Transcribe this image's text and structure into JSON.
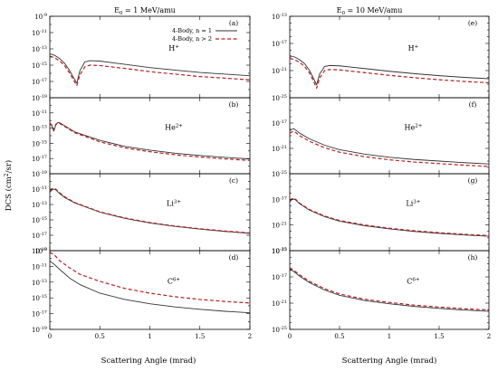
{
  "figure": {
    "col_titles": [
      "E",
      "E"
    ],
    "col_title_sub": [
      "0",
      "0"
    ],
    "col_title_rest": [
      " = 1 MeV/amu",
      " = 10 MeV/amu"
    ],
    "ylabel": "DCS (cm",
    "ylabel_sup": "2",
    "ylabel_rest": "/sr)",
    "xlabel": "Scattering Angle (mrad)",
    "legend": [
      "4-Body, n = 1",
      "4-Body, n > 2"
    ],
    "colors": {
      "n1": "#333333",
      "n2": "#b22222",
      "frame": "#000000"
    }
  },
  "chart_data": [
    {
      "type": "line",
      "panel": "(a)",
      "ion": "H",
      "ion_charge": "+",
      "energy": "1 MeV/amu",
      "log_y": true,
      "xlim": [
        0,
        2
      ],
      "ylim_exp": [
        -19,
        -9
      ],
      "x_ticks": [
        "0",
        "0.5",
        "1",
        "1.5",
        "2"
      ],
      "y_ticks": [
        "10-9",
        "10-11",
        "10-13",
        "10-15",
        "10-17",
        "10-19"
      ],
      "series": [
        {
          "name": "4-Body, n = 1",
          "x": [
            0,
            0.05,
            0.1,
            0.15,
            0.2,
            0.24,
            0.27,
            0.3,
            0.35,
            0.4,
            0.5,
            0.75,
            1.0,
            1.25,
            1.5,
            1.75,
            2.0
          ],
          "logy": [
            -13.6,
            -13.8,
            -14.2,
            -14.8,
            -15.7,
            -16.6,
            -17.2,
            -15.7,
            -14.6,
            -14.45,
            -14.5,
            -14.9,
            -15.3,
            -15.6,
            -15.9,
            -16.1,
            -16.3
          ]
        },
        {
          "name": "4-Body, n > 2",
          "x": [
            0,
            0.05,
            0.1,
            0.15,
            0.2,
            0.24,
            0.27,
            0.3,
            0.35,
            0.4,
            0.5,
            0.75,
            1.0,
            1.25,
            1.5,
            1.75,
            2.0
          ],
          "logy": [
            -13.9,
            -14.1,
            -14.5,
            -15.1,
            -16.0,
            -16.9,
            -17.5,
            -16.2,
            -15.2,
            -15.0,
            -15.05,
            -15.4,
            -15.8,
            -16.1,
            -16.4,
            -16.6,
            -16.8
          ]
        }
      ]
    },
    {
      "type": "line",
      "panel": "(b)",
      "ion": "He",
      "ion_charge": "2+",
      "energy": "1 MeV/amu",
      "log_y": true,
      "xlim": [
        0,
        2
      ],
      "ylim_exp": [
        -19,
        -9
      ],
      "x_ticks": [],
      "y_ticks": [
        "10-11",
        "10-13",
        "10-15",
        "10-17",
        "10-19"
      ],
      "series": [
        {
          "name": "4-Body, n = 1",
          "x": [
            0,
            0.02,
            0.04,
            0.06,
            0.08,
            0.1,
            0.15,
            0.25,
            0.5,
            0.75,
            1.0,
            1.25,
            1.5,
            1.75,
            2.0
          ],
          "logy": [
            -12.4,
            -12.7,
            -13.4,
            -12.6,
            -12.25,
            -12.3,
            -12.7,
            -13.5,
            -14.6,
            -15.4,
            -15.9,
            -16.3,
            -16.6,
            -16.85,
            -17.05
          ]
        },
        {
          "name": "4-Body, n > 2",
          "x": [
            0,
            0.02,
            0.04,
            0.06,
            0.08,
            0.1,
            0.15,
            0.25,
            0.5,
            0.75,
            1.0,
            1.25,
            1.5,
            1.75,
            2.0
          ],
          "logy": [
            -12.3,
            -12.6,
            -13.2,
            -12.5,
            -12.3,
            -12.4,
            -12.8,
            -13.6,
            -14.8,
            -15.6,
            -16.1,
            -16.5,
            -16.8,
            -17.05,
            -17.25
          ]
        }
      ]
    },
    {
      "type": "line",
      "panel": "(c)",
      "ion": "Li",
      "ion_charge": "3+",
      "energy": "1 MeV/amu",
      "log_y": true,
      "xlim": [
        0,
        2
      ],
      "ylim_exp": [
        -19,
        -9
      ],
      "x_ticks": [],
      "y_ticks": [
        "10-11",
        "10-13",
        "10-15",
        "10-17",
        "10-19"
      ],
      "series": [
        {
          "name": "4-Body, n = 1",
          "x": [
            0,
            0.03,
            0.06,
            0.1,
            0.15,
            0.25,
            0.5,
            0.75,
            1.0,
            1.25,
            1.5,
            1.75,
            2.0
          ],
          "logy": [
            -11.4,
            -11.0,
            -11.1,
            -11.6,
            -12.1,
            -12.8,
            -14.0,
            -14.8,
            -15.4,
            -15.85,
            -16.2,
            -16.5,
            -16.75
          ]
        },
        {
          "name": "4-Body, n > 2",
          "x": [
            0,
            0.03,
            0.06,
            0.1,
            0.15,
            0.25,
            0.5,
            0.75,
            1.0,
            1.25,
            1.5,
            1.75,
            2.0
          ],
          "logy": [
            -11.2,
            -10.9,
            -11.0,
            -11.5,
            -12.0,
            -12.75,
            -13.95,
            -14.75,
            -15.35,
            -15.8,
            -16.15,
            -16.45,
            -16.7
          ]
        }
      ]
    },
    {
      "type": "line",
      "panel": "(d)",
      "ion": "C",
      "ion_charge": "6+",
      "energy": "1 MeV/amu",
      "log_y": true,
      "xlim": [
        0,
        2
      ],
      "ylim_exp": [
        -19,
        -9
      ],
      "x_ticks": [
        "0",
        "0.5",
        "1",
        "1.5",
        "2"
      ],
      "y_ticks": [
        "10-9",
        "10-11",
        "10-13",
        "10-15",
        "10-17",
        "10-19"
      ],
      "series": [
        {
          "name": "4-Body, n = 1",
          "x": [
            0,
            0.05,
            0.1,
            0.2,
            0.3,
            0.5,
            0.75,
            1.0,
            1.25,
            1.5,
            1.75,
            2.0
          ],
          "logy": [
            -10.3,
            -10.8,
            -11.4,
            -12.5,
            -13.3,
            -14.4,
            -15.2,
            -15.75,
            -16.15,
            -16.45,
            -16.7,
            -16.9
          ]
        },
        {
          "name": "4-Body, n > 2",
          "x": [
            0,
            0.05,
            0.1,
            0.2,
            0.3,
            0.5,
            0.75,
            1.0,
            1.25,
            1.5,
            1.75,
            2.0
          ],
          "logy": [
            -9.2,
            -9.6,
            -10.3,
            -11.2,
            -12.0,
            -12.9,
            -13.8,
            -14.4,
            -14.85,
            -15.2,
            -15.45,
            -15.65
          ]
        }
      ]
    },
    {
      "type": "line",
      "panel": "(e)",
      "ion": "H",
      "ion_charge": "+",
      "energy": "10 MeV/amu",
      "log_y": true,
      "xlim": [
        0,
        2
      ],
      "ylim_exp": [
        -25,
        -13
      ],
      "x_ticks": [
        "0",
        "0.5",
        "1",
        "1.5",
        "2"
      ],
      "y_ticks": [
        "10-13",
        "10-17",
        "10-21",
        "10-25"
      ],
      "series": [
        {
          "name": "4-Body, n = 1",
          "x": [
            0,
            0.05,
            0.1,
            0.15,
            0.2,
            0.24,
            0.27,
            0.3,
            0.35,
            0.4,
            0.5,
            0.75,
            1.0,
            1.25,
            1.5,
            1.75,
            2.0
          ],
          "logy": [
            -18.8,
            -19.0,
            -19.4,
            -20.0,
            -21.0,
            -22.2,
            -23.1,
            -21.5,
            -20.4,
            -20.25,
            -20.3,
            -20.7,
            -21.1,
            -21.45,
            -21.75,
            -22.0,
            -22.2
          ]
        },
        {
          "name": "4-Body, n > 2",
          "x": [
            0,
            0.05,
            0.1,
            0.15,
            0.2,
            0.24,
            0.27,
            0.3,
            0.35,
            0.4,
            0.5,
            0.75,
            1.0,
            1.25,
            1.5,
            1.75,
            2.0
          ],
          "logy": [
            -19.2,
            -19.4,
            -19.8,
            -20.4,
            -21.4,
            -22.6,
            -23.6,
            -22.1,
            -21.0,
            -20.85,
            -20.9,
            -21.3,
            -21.7,
            -22.05,
            -22.35,
            -22.6,
            -22.8
          ]
        }
      ]
    },
    {
      "type": "line",
      "panel": "(f)",
      "ion": "He",
      "ion_charge": "2+",
      "energy": "10 MeV/amu",
      "log_y": true,
      "xlim": [
        0,
        2
      ],
      "ylim_exp": [
        -25,
        -13
      ],
      "x_ticks": [],
      "y_ticks": [
        "10-17",
        "10-21",
        "10-25"
      ],
      "series": [
        {
          "name": "4-Body, n = 1",
          "x": [
            0,
            0.02,
            0.04,
            0.06,
            0.1,
            0.2,
            0.35,
            0.5,
            0.75,
            1.0,
            1.25,
            1.5,
            1.75,
            2.0
          ],
          "logy": [
            -18.2,
            -18.0,
            -17.9,
            -18.1,
            -18.6,
            -19.5,
            -20.5,
            -21.2,
            -21.9,
            -22.4,
            -22.75,
            -23.0,
            -23.25,
            -23.45
          ]
        },
        {
          "name": "4-Body, n > 2",
          "x": [
            0,
            0.02,
            0.04,
            0.06,
            0.1,
            0.2,
            0.35,
            0.5,
            0.75,
            1.0,
            1.25,
            1.5,
            1.75,
            2.0
          ],
          "logy": [
            -18.6,
            -18.4,
            -18.3,
            -18.5,
            -19.0,
            -19.9,
            -20.9,
            -21.6,
            -22.3,
            -22.8,
            -23.15,
            -23.4,
            -23.65,
            -23.85
          ]
        }
      ]
    },
    {
      "type": "line",
      "panel": "(g)",
      "ion": "Li",
      "ion_charge": "3+",
      "energy": "10 MeV/amu",
      "log_y": true,
      "xlim": [
        0,
        2
      ],
      "ylim_exp": [
        -25,
        -13
      ],
      "x_ticks": [],
      "y_ticks": [
        "10-17",
        "10-21",
        "10-25"
      ],
      "series": [
        {
          "name": "4-Body, n = 1",
          "x": [
            0,
            0.03,
            0.06,
            0.1,
            0.2,
            0.35,
            0.5,
            0.75,
            1.0,
            1.25,
            1.5,
            1.75,
            2.0
          ],
          "logy": [
            -17.4,
            -16.9,
            -17.1,
            -17.7,
            -18.7,
            -19.7,
            -20.4,
            -21.1,
            -21.6,
            -22.0,
            -22.3,
            -22.55,
            -22.75
          ]
        },
        {
          "name": "4-Body, n > 2",
          "x": [
            0,
            0.03,
            0.06,
            0.1,
            0.2,
            0.35,
            0.5,
            0.75,
            1.0,
            1.25,
            1.5,
            1.75,
            2.0
          ],
          "logy": [
            -17.2,
            -16.8,
            -17.0,
            -17.6,
            -18.6,
            -19.6,
            -20.3,
            -21.0,
            -21.5,
            -21.9,
            -22.2,
            -22.45,
            -22.65
          ]
        }
      ]
    },
    {
      "type": "line",
      "panel": "(h)",
      "ion": "C",
      "ion_charge": "6+",
      "energy": "10 MeV/amu",
      "log_y": true,
      "xlim": [
        0,
        2
      ],
      "ylim_exp": [
        -25,
        -13
      ],
      "x_ticks": [
        "0",
        "0.5",
        "1",
        "1.5",
        "2"
      ],
      "y_ticks": [
        "10-13",
        "10-17",
        "10-21",
        "10-25"
      ],
      "series": [
        {
          "name": "4-Body, n = 1",
          "x": [
            0,
            0.05,
            0.1,
            0.2,
            0.35,
            0.5,
            0.75,
            1.0,
            1.25,
            1.5,
            1.75,
            2.0
          ],
          "logy": [
            -15.8,
            -16.3,
            -16.9,
            -17.9,
            -19.0,
            -19.8,
            -20.6,
            -21.1,
            -21.5,
            -21.8,
            -22.05,
            -22.25
          ]
        },
        {
          "name": "4-Body, n > 2",
          "x": [
            0,
            0.05,
            0.1,
            0.2,
            0.35,
            0.5,
            0.75,
            1.0,
            1.25,
            1.5,
            1.75,
            2.0
          ],
          "logy": [
            -15.6,
            -16.1,
            -16.7,
            -17.7,
            -18.8,
            -19.6,
            -20.4,
            -20.9,
            -21.3,
            -21.6,
            -21.85,
            -22.05
          ]
        }
      ]
    }
  ]
}
